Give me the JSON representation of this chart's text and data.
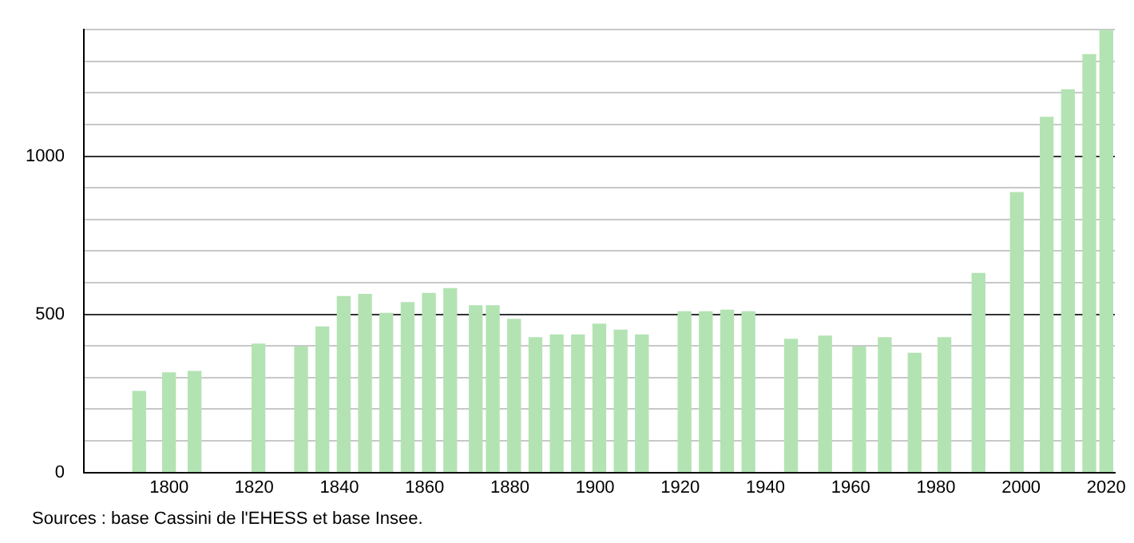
{
  "chart_data": {
    "type": "bar",
    "color": "#b3e3b3",
    "x": [
      1793,
      1800,
      1806,
      1821,
      1831,
      1836,
      1841,
      1846,
      1851,
      1856,
      1861,
      1866,
      1872,
      1876,
      1881,
      1886,
      1891,
      1896,
      1901,
      1906,
      1911,
      1921,
      1926,
      1931,
      1936,
      1946,
      1954,
      1962,
      1968,
      1975,
      1982,
      1990,
      1999,
      2006,
      2011,
      2016,
      2020
    ],
    "values": [
      256,
      315,
      319,
      406,
      397,
      460,
      556,
      563,
      503,
      537,
      566,
      581,
      527,
      527,
      484,
      426,
      435,
      435,
      469,
      450,
      435,
      508,
      508,
      513,
      508,
      421,
      431,
      397,
      426,
      377,
      426,
      629,
      885,
      1123,
      1210,
      1321,
      1398
    ],
    "xlim": [
      1780,
      2022
    ],
    "xticks": [
      1800,
      1820,
      1840,
      1860,
      1880,
      1900,
      1920,
      1940,
      1960,
      1980,
      2000,
      2020
    ],
    "ylim": [
      0,
      1400
    ],
    "yticks": [
      0,
      {
        "value": 100,
        "label": null
      },
      {
        "value": 200,
        "label": null
      },
      {
        "value": 300,
        "label": null
      },
      {
        "value": 400,
        "label": null
      },
      500,
      {
        "value": 600,
        "label": null
      },
      {
        "value": 700,
        "label": null
      },
      {
        "value": 800,
        "label": null
      },
      {
        "value": 900,
        "label": null
      },
      1000,
      {
        "value": 1100,
        "label": null
      },
      {
        "value": 1200,
        "label": null
      },
      {
        "value": 1300,
        "label": null
      },
      {
        "value": 1400,
        "label": null
      }
    ],
    "grid": "y",
    "legend": false,
    "annotations": [
      "Sources : base Cassini de l'EHESS et base Insee."
    ]
  }
}
